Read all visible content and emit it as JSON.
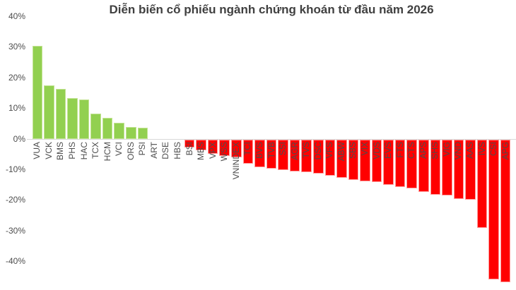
{
  "chart_data": {
    "type": "bar",
    "title": "Diễn biến cổ phiếu ngành chứng khoán từ đầu năm 2026",
    "xlabel": "",
    "ylabel": "",
    "categories": [
      "VUA",
      "VCK",
      "BMS",
      "PHS",
      "HAC",
      "TCX",
      "HCM",
      "VCI",
      "ORS",
      "PSI",
      "ART",
      "DSE",
      "HBS",
      "BSI",
      "MBS",
      "VPX",
      "WSS",
      "VNINDEX",
      "TCI",
      "BVS",
      "TVB",
      "SSI",
      "AGR",
      "TVS",
      "DSC",
      "VFS",
      "ABW",
      "SBS",
      "VIX",
      "VDS",
      "EVS",
      "FTS",
      "CTS",
      "APS",
      "SHS",
      "VIG",
      "VND",
      "AAS",
      "IVS",
      "CSI",
      "APG"
    ],
    "values": [
      30.5,
      17.5,
      16.4,
      13.4,
      12.8,
      8.3,
      6.8,
      5.2,
      4.0,
      3.6,
      0,
      0,
      0,
      -2.6,
      -3.5,
      -4.6,
      -5.3,
      -5.8,
      -7.8,
      -8.9,
      -9.5,
      -10.0,
      -10.4,
      -10.7,
      -11.0,
      -11.8,
      -12.4,
      -13.2,
      -13.7,
      -13.8,
      -14.8,
      -15.5,
      -15.9,
      -17.0,
      -17.9,
      -18.2,
      -19.3,
      -19.6,
      -28.8,
      -45.6,
      -46.5
    ],
    "unit": "%",
    "yticks": [
      40,
      30,
      20,
      10,
      0,
      -10,
      -20,
      -30,
      -40
    ],
    "ytick_suffix": "%",
    "ylim": [
      -48,
      40
    ],
    "grid": false,
    "legend": "none",
    "colors": {
      "positive_bar": "#92D050",
      "negative_bar": "#FF0000",
      "axis_text": "#4d4d4d",
      "title_text": "#404040",
      "zero_line": "#d9d9d9"
    }
  }
}
